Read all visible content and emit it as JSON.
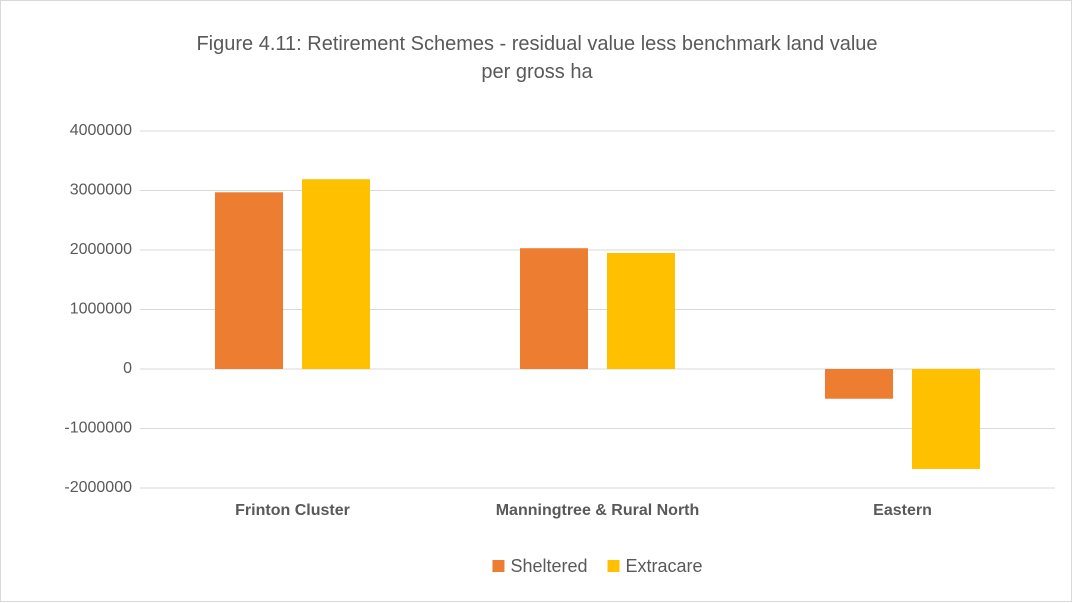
{
  "chart_data": {
    "type": "bar",
    "title": "Figure 4.11: Retirement Schemes - residual value less benchmark land value per gross ha",
    "categories": [
      "Frinton Cluster",
      "Manningtree & Rural North",
      "Eastern"
    ],
    "series": [
      {
        "name": "Sheltered",
        "color": "#ED7D31",
        "values": [
          2970000,
          2030000,
          -500000
        ]
      },
      {
        "name": "Extracare",
        "color": "#FFC000",
        "values": [
          3190000,
          1950000,
          -1680000
        ]
      }
    ],
    "ylim": [
      -2000000,
      4000000
    ],
    "yticks": [
      -2000000,
      -1000000,
      0,
      1000000,
      2000000,
      3000000,
      4000000
    ],
    "grid": true,
    "legend": "bottom"
  }
}
